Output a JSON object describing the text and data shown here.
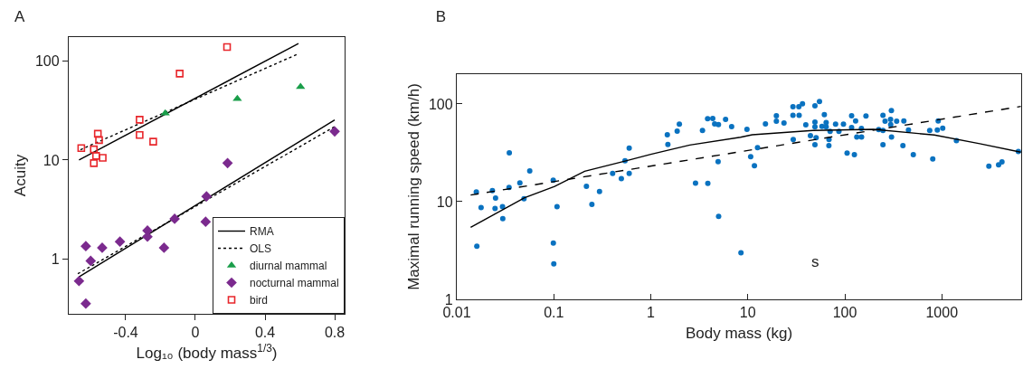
{
  "chart_data": [
    {
      "type": "scatter",
      "title": "A",
      "xlabel": "Log₁₀ (body mass$^{1/3}$)",
      "ylabel": "Acuity",
      "xlim": [
        -0.727,
        0.857
      ],
      "xticks": [
        -0.4,
        0,
        0.4,
        0.8
      ],
      "ylim": [
        0.28,
        174
      ],
      "yticks": [
        1,
        10,
        100
      ],
      "log": "y",
      "grid": false,
      "legend": "bottom right",
      "series": [
        {
          "name": "RMA",
          "type": "line",
          "line_style": "solid",
          "color": "#000000",
          "x": [
            -0.668,
            0.592
          ],
          "values": [
            10,
            150
          ]
        },
        {
          "name": "OLS",
          "type": "line",
          "line_style": "dotted",
          "color": "#000000",
          "x": [
            -0.66,
            0.592
          ],
          "values": [
            12.7,
            118
          ]
        },
        {
          "type": "line",
          "line_style": "solid",
          "color": "#000000",
          "x": [
            -0.668,
            0.8
          ],
          "values": [
            0.66,
            25.4
          ]
        },
        {
          "type": "line",
          "line_style": "dotted",
          "color": "#000000",
          "x": [
            -0.675,
            0.8
          ],
          "values": [
            0.71,
            21.7
          ]
        },
        {
          "name": "diurnal mammal",
          "marker": "triangle",
          "color": "#1a9e4a",
          "x": [
            -0.173,
            0.241,
            0.604
          ],
          "values": [
            29.6,
            41.4,
            54.8
          ]
        },
        {
          "name": "nocturnal mammal",
          "marker": "diamond",
          "color": "#7b2a8e",
          "x": [
            -0.668,
            -0.629,
            -0.629,
            -0.601,
            -0.535,
            -0.433,
            -0.275,
            -0.275,
            -0.18,
            -0.119,
            0.059,
            0.064,
            0.185,
            0.8
          ],
          "values": [
            0.6,
            0.355,
            1.35,
            0.96,
            1.3,
            1.5,
            1.94,
            1.68,
            1.3,
            2.55,
            2.38,
            4.29,
            9.3,
            19.4
          ]
        },
        {
          "name": "bird",
          "marker": "square",
          "color": "#e8262b",
          "x": [
            -0.655,
            -0.583,
            -0.583,
            -0.57,
            -0.56,
            -0.553,
            -0.532,
            -0.32,
            -0.32,
            -0.242,
            -0.09,
            0.182
          ],
          "values": [
            13.2,
            12.8,
            9.3,
            11.0,
            18.4,
            15.9,
            10.5,
            25.5,
            17.9,
            15.3,
            74.5,
            138
          ]
        }
      ]
    },
    {
      "type": "scatter",
      "title": "B",
      "xlabel": "Body mass (kg)",
      "ylabel": "Maximal running speed (km/h)",
      "xlim": [
        0.01,
        6577
      ],
      "xticks": [
        0.01,
        0.1,
        1,
        10,
        100,
        1000
      ],
      "ylim": [
        1,
        202
      ],
      "yticks": [
        1,
        10,
        100
      ],
      "log": "xy",
      "grid": false,
      "legend": false,
      "annotations": [
        "s"
      ],
      "series": [
        {
          "marker": "circle",
          "color": "#0a72c0",
          "x": [
            0.0159,
            0.0178,
            0.0161,
            0.0233,
            0.0251,
            0.0248,
            0.0296,
            0.0298,
            0.0346,
            0.0348,
            0.0447,
            0.0493,
            0.0565,
            0.0987,
            0.099,
            0.1,
            0.108,
            0.217,
            0.247,
            0.296,
            0.404,
            0.497,
            0.542,
            0.599,
            0.599,
            1.48,
            1.5,
            1.87,
            1.97,
            2.89,
            3.41,
            3.85,
            3.87,
            4.35,
            4.55,
            4.98,
            4.94,
            5.0,
            5.9,
            6.81,
            8.5,
            9.8,
            10.7,
            11.7,
            12.6,
            15.2,
            19.7,
            19.7,
            23.6,
            29.2,
            29.2,
            29.4,
            33.6,
            33.8,
            36.6,
            39.6,
            44.2,
            49.2,
            49.2,
            49.2,
            49.2,
            50.6,
            54.8,
            58.1,
            61.5,
            64.2,
            64.2,
            68.5,
            68.7,
            70.5,
            80.3,
            86.9,
            96.8,
            105.5,
            117.5,
            117.5,
            125.5,
            129.2,
            132.9,
            148.3,
            148.7,
            165.2,
            223.4,
            247.2,
            247.2,
            247.2,
            260,
            296,
            297,
            302,
            303,
            342,
            397,
            406,
            453,
            508,
            750,
            806,
            898,
            917,
            1021,
            1413,
            3055,
            3846,
            4167,
            6150
          ],
          "values": [
            12.6,
            8.7,
            3.5,
            13.0,
            10.9,
            8.5,
            8.9,
            6.7,
            14.0,
            31.6,
            15.6,
            10.7,
            20.6,
            16.6,
            3.78,
            2.31,
            8.9,
            14.4,
            9.4,
            12.7,
            19.5,
            17.2,
            26.3,
            19.5,
            35.4,
            48.4,
            38.6,
            52.8,
            62.1,
            15.5,
            53.5,
            70.6,
            15.4,
            71.1,
            62.5,
            61.7,
            25.7,
            7.06,
            69.6,
            58.8,
            3.0,
            55.1,
            28.8,
            23.3,
            35.7,
            62.6,
            75.9,
            66.7,
            63.9,
            93.7,
            76.4,
            43.3,
            93.7,
            76.4,
            100.7,
            61.3,
            47.4,
            95.7,
            65.3,
            58.3,
            38.4,
            45.2,
            105.9,
            59.1,
            78.0,
            64.4,
            58.3,
            37.5,
            43.3,
            52.4,
            62.1,
            52.4,
            62.1,
            31.4,
            75.9,
            57.5,
            30.3,
            67.1,
            46.0,
            56.1,
            46.0,
            75.3,
            54.7,
            76.4,
            38.4,
            53.5,
            66.7,
            69.6,
            61.7,
            85.5,
            46.0,
            66.7,
            37.5,
            67.1,
            54.2,
            30.3,
            53.5,
            27.4,
            54.2,
            67.1,
            56.6,
            42.1,
            23.1,
            23.8,
            25.5,
            32.7
          ]
        },
        {
          "type": "line",
          "line_style": "solid",
          "color": "#000000",
          "x": [
            0.0139,
            0.05,
            0.102,
            0.208,
            0.565,
            1,
            2.52,
            8.4,
            11.1,
            46.8,
            198,
            836,
            2460,
            6516
          ],
          "values": [
            5.47,
            11.0,
            14.3,
            20.5,
            26.3,
            30.5,
            38.0,
            45.7,
            48.4,
            53.5,
            55.1,
            48.1,
            39.2,
            32.1
          ]
        },
        {
          "type": "line",
          "line_style": "dashed",
          "color": "#000000",
          "x": [
            0.0139,
            8.4,
            6516
          ],
          "values": [
            11.7,
            32.5,
            94.4
          ]
        }
      ]
    }
  ]
}
